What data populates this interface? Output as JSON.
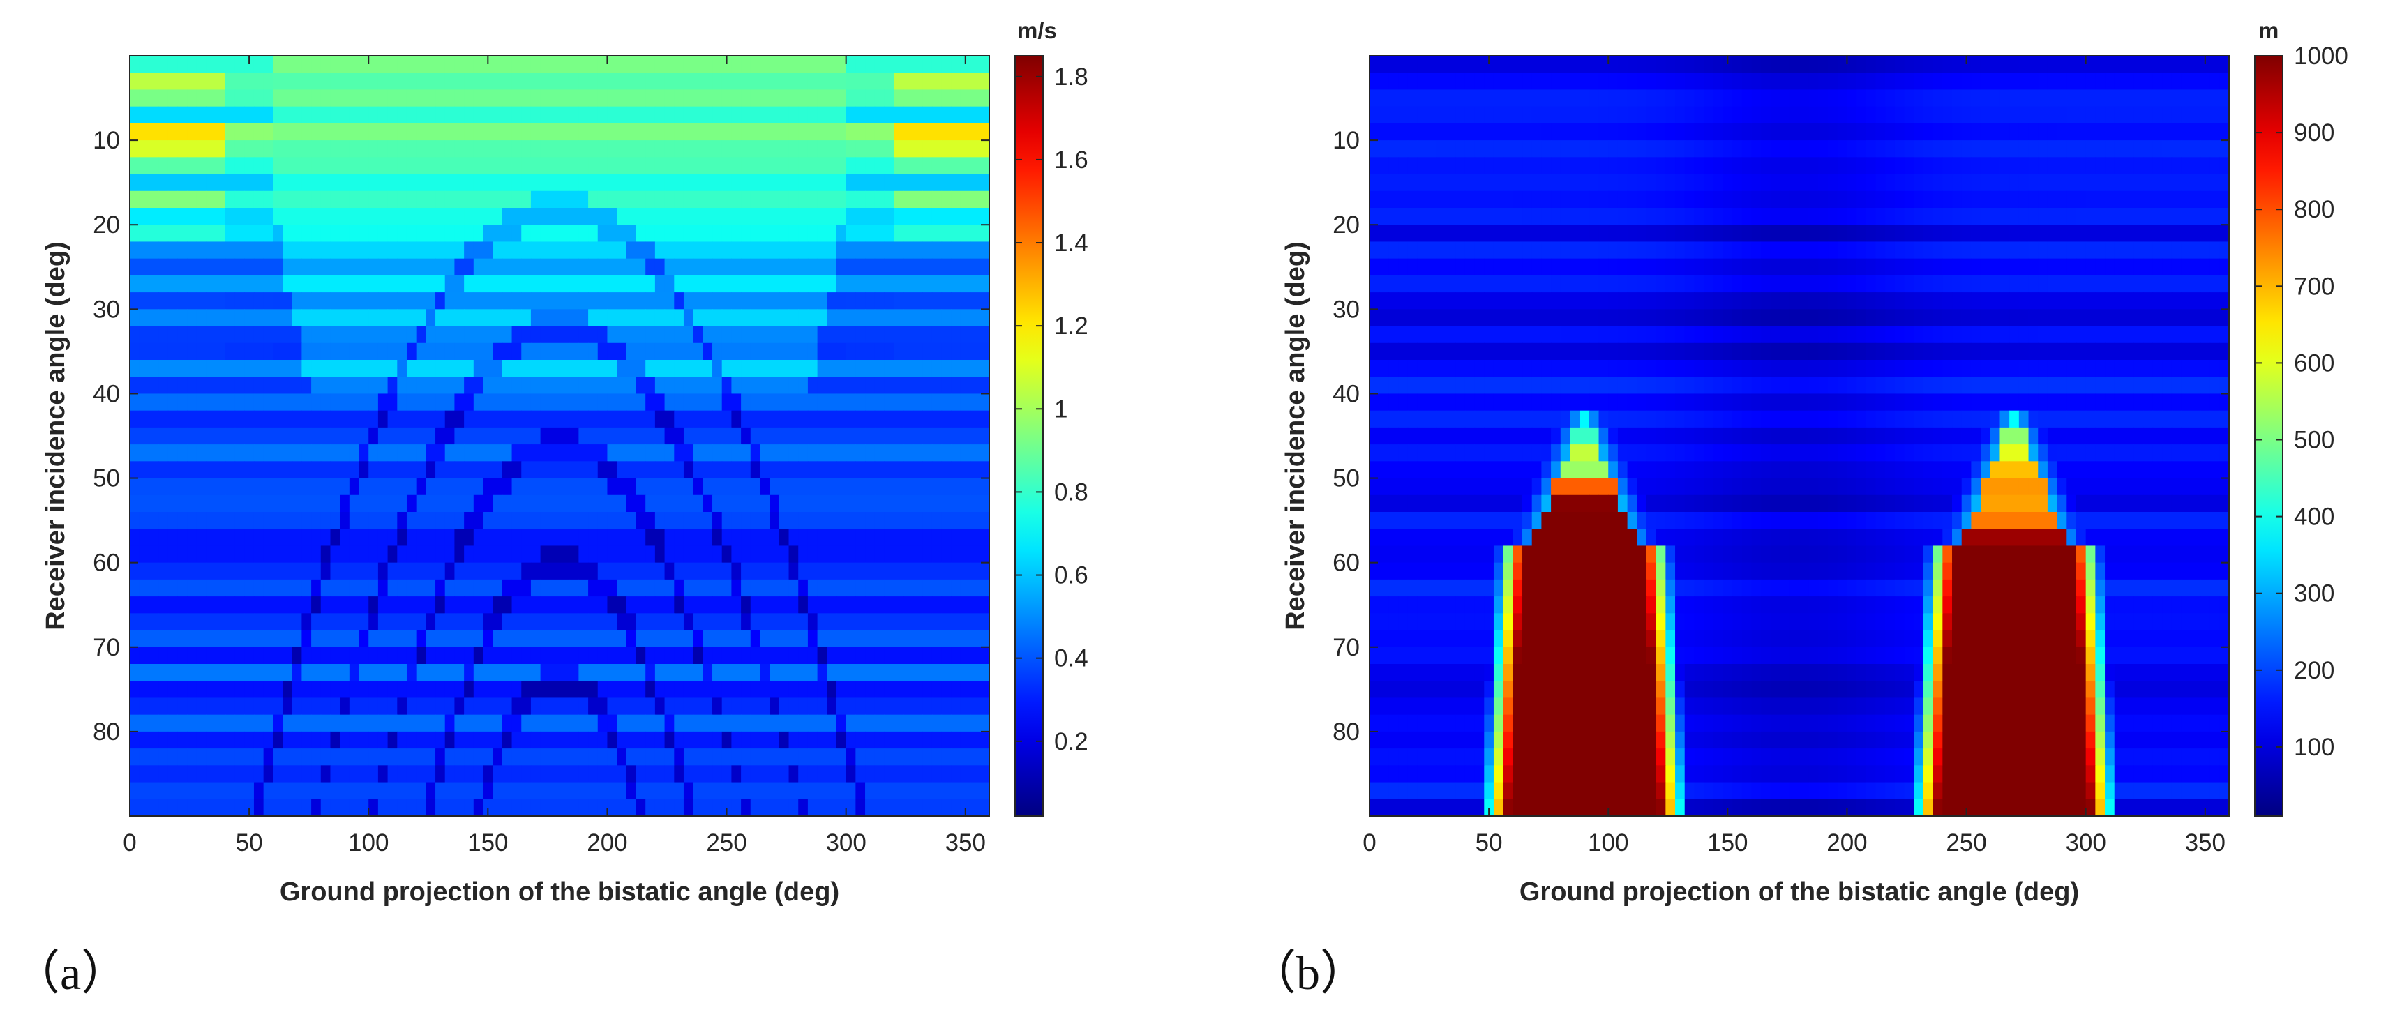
{
  "figure": {
    "panel_labels": [
      "（a）",
      "（b）"
    ]
  },
  "chart_data": [
    {
      "type": "heatmap",
      "id": "a",
      "xlabel": "Ground projection of the bistatic angle (deg)",
      "ylabel": "Receiver incidence angle (deg)",
      "xlim": [
        0,
        360
      ],
      "ylim": [
        0,
        90
      ],
      "y_direction": "reverse",
      "xticks": [
        0,
        50,
        100,
        150,
        200,
        250,
        300,
        350
      ],
      "yticks": [
        10,
        20,
        30,
        40,
        50,
        60,
        70,
        80
      ],
      "colormap": "jet",
      "colorbar": {
        "unit": "m/s",
        "range": [
          0.02,
          1.85
        ],
        "ticks": [
          0.2,
          0.4,
          0.6,
          0.8,
          1,
          1.2,
          1.4,
          1.6,
          1.8
        ]
      },
      "grid_columns": 90,
      "grid_rows": 45,
      "description": "Mostly low values (about 0.2-0.5) with bright horizontal bands near the top rows and nested arc-shaped low-value ridges centred at 180 deg"
    },
    {
      "type": "heatmap",
      "id": "b",
      "xlabel": "Ground projection of the bistatic angle (deg)",
      "ylabel": "Receiver incidence angle (deg)",
      "xlim": [
        0,
        360
      ],
      "ylim": [
        0,
        90
      ],
      "y_direction": "reverse",
      "xticks": [
        0,
        50,
        100,
        150,
        200,
        250,
        300,
        350
      ],
      "yticks": [
        10,
        20,
        30,
        40,
        50,
        60,
        70,
        80
      ],
      "colormap": "jet",
      "colorbar": {
        "unit": "m",
        "range": [
          10,
          1000
        ],
        "ticks": [
          100,
          200,
          300,
          400,
          500,
          600,
          700,
          800,
          900,
          1000
        ]
      },
      "grid_columns": 90,
      "grid_rows": 45,
      "saturated_regions": [
        {
          "x_range": [
            60,
            115
          ],
          "y_range": [
            58,
            90
          ],
          "value": 1000
        },
        {
          "x_range": [
            245,
            300
          ],
          "y_range": [
            58,
            90
          ],
          "value": 1000
        }
      ],
      "description": "Low values (about 50-150) except two saturated lobes near 90 deg and 270 deg at incidence angles above about 48 deg"
    }
  ]
}
